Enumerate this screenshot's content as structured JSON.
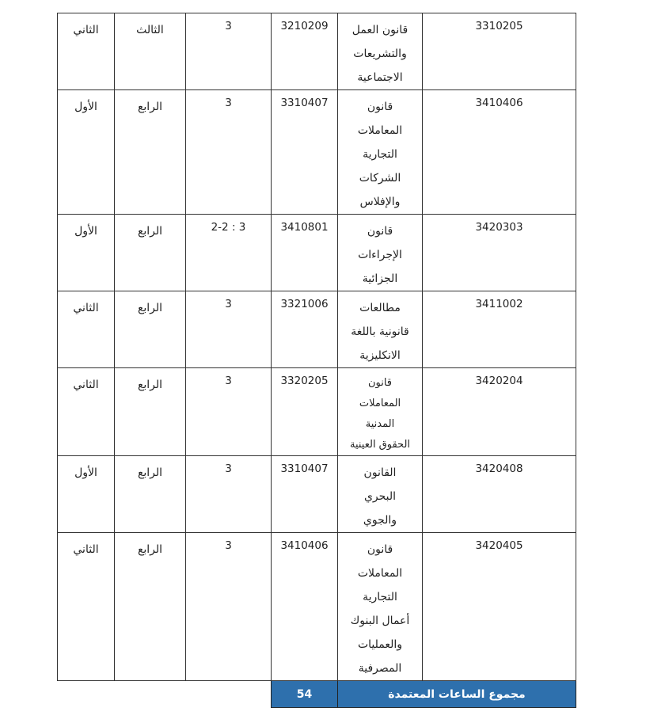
{
  "rows": [
    {
      "code": "3310205",
      "name": [
        "قانون العمل",
        "والتشريعات",
        "الاجتماعية"
      ],
      "prereq": "3210209",
      "hours": "3",
      "level": "الثالث",
      "semester": "الثاني"
    },
    {
      "code": "3410406",
      "name": [
        "قانون",
        "المعاملات",
        "التجارية",
        "الشركات",
        "والإفلاس"
      ],
      "prereq": "3310407",
      "hours": "3",
      "level": "الرابع",
      "semester": "الأول"
    },
    {
      "code": "3420303",
      "name": [
        "قانون",
        "الإجراءات",
        "الجزائية"
      ],
      "prereq": "3410801",
      "hours": "3 : 2-2",
      "level": "الرابع",
      "semester": "الأول"
    },
    {
      "code": "3411002",
      "name": [
        "مطالعات",
        "قانونية باللغة",
        "الانكليزية"
      ],
      "prereq": "3321006",
      "hours": "3",
      "level": "الرابع",
      "semester": "الثاني"
    },
    {
      "code": "3420204",
      "name": [
        "قانون",
        "المعاملات",
        "المدنية",
        "الحقوق العينية"
      ],
      "prereq": "3320205",
      "hours": "3",
      "level": "الرابع",
      "semester": "الثاني"
    },
    {
      "code": "3420408",
      "name": [
        "القانون",
        "البحري",
        "والجوي"
      ],
      "prereq": "3310407",
      "hours": "3",
      "level": "الرابع",
      "semester": "الأول"
    },
    {
      "code": "3420405",
      "name": [
        "قانون",
        "المعاملات",
        "التجارية",
        "أعمال البنوك",
        "والعمليات",
        "المصرفية"
      ],
      "prereq": "3410406",
      "hours": "3",
      "level": "الرابع",
      "semester": "الثاني"
    }
  ],
  "footer": {
    "label": "مجموع الساعات المعتمدة",
    "total": "54"
  },
  "colors": {
    "footer_bg": "#2e70ad"
  }
}
